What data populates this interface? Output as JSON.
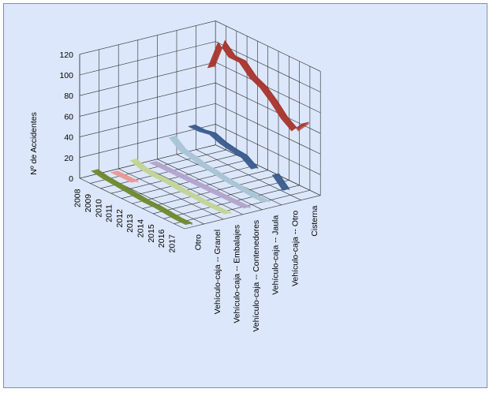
{
  "chart_data": {
    "type": "line",
    "subtype": "3d-ribbon",
    "title": "",
    "ylabel": "Nº de Accidentes",
    "ylim": [
      0,
      120
    ],
    "yticks": [
      0,
      20,
      40,
      60,
      80,
      100,
      120
    ],
    "grid": true,
    "legend": "none",
    "categories": [
      "2008",
      "2009",
      "2010",
      "2011",
      "2012",
      "2013",
      "2014",
      "2015",
      "2016",
      "2017"
    ],
    "series": [
      {
        "name": "Otro",
        "color": "#6f8a2e",
        "values": [
          8,
          6,
          5,
          4,
          3,
          2,
          2,
          1,
          0,
          0
        ]
      },
      {
        "name": "Vehículo-caja -- Granel",
        "color": "#e89a96",
        "values": [
          2,
          2,
          2,
          null,
          null,
          null,
          null,
          null,
          null,
          null
        ]
      },
      {
        "name": "Vehículo-caja -- Embalajes",
        "color": "#c3d596",
        "values": [
          9,
          5,
          4,
          4,
          3,
          2,
          2,
          1,
          1,
          1
        ]
      },
      {
        "name": "Vehículo-caja -- Contenedores",
        "color": "#b3a5cc",
        "values": [
          2,
          2,
          2,
          2,
          2,
          2,
          2,
          2,
          2,
          2
        ]
      },
      {
        "name": "Vehículo-caja -- Jaula",
        "color": "#a9c6d6",
        "values": [
          22,
          14,
          12,
          9,
          8,
          6,
          5,
          4,
          3,
          3
        ]
      },
      {
        "name": "Vehículo-caja -- Otro",
        "color": "#3a5b8e",
        "values": [
          28,
          28,
          30,
          26,
          24,
          23,
          16,
          null,
          20,
          10
        ]
      },
      {
        "name": "Cisterna",
        "color": "#a8342c",
        "values": [
          80,
          110,
          100,
          100,
          90,
          85,
          76,
          65,
          58,
          70
        ]
      }
    ]
  }
}
